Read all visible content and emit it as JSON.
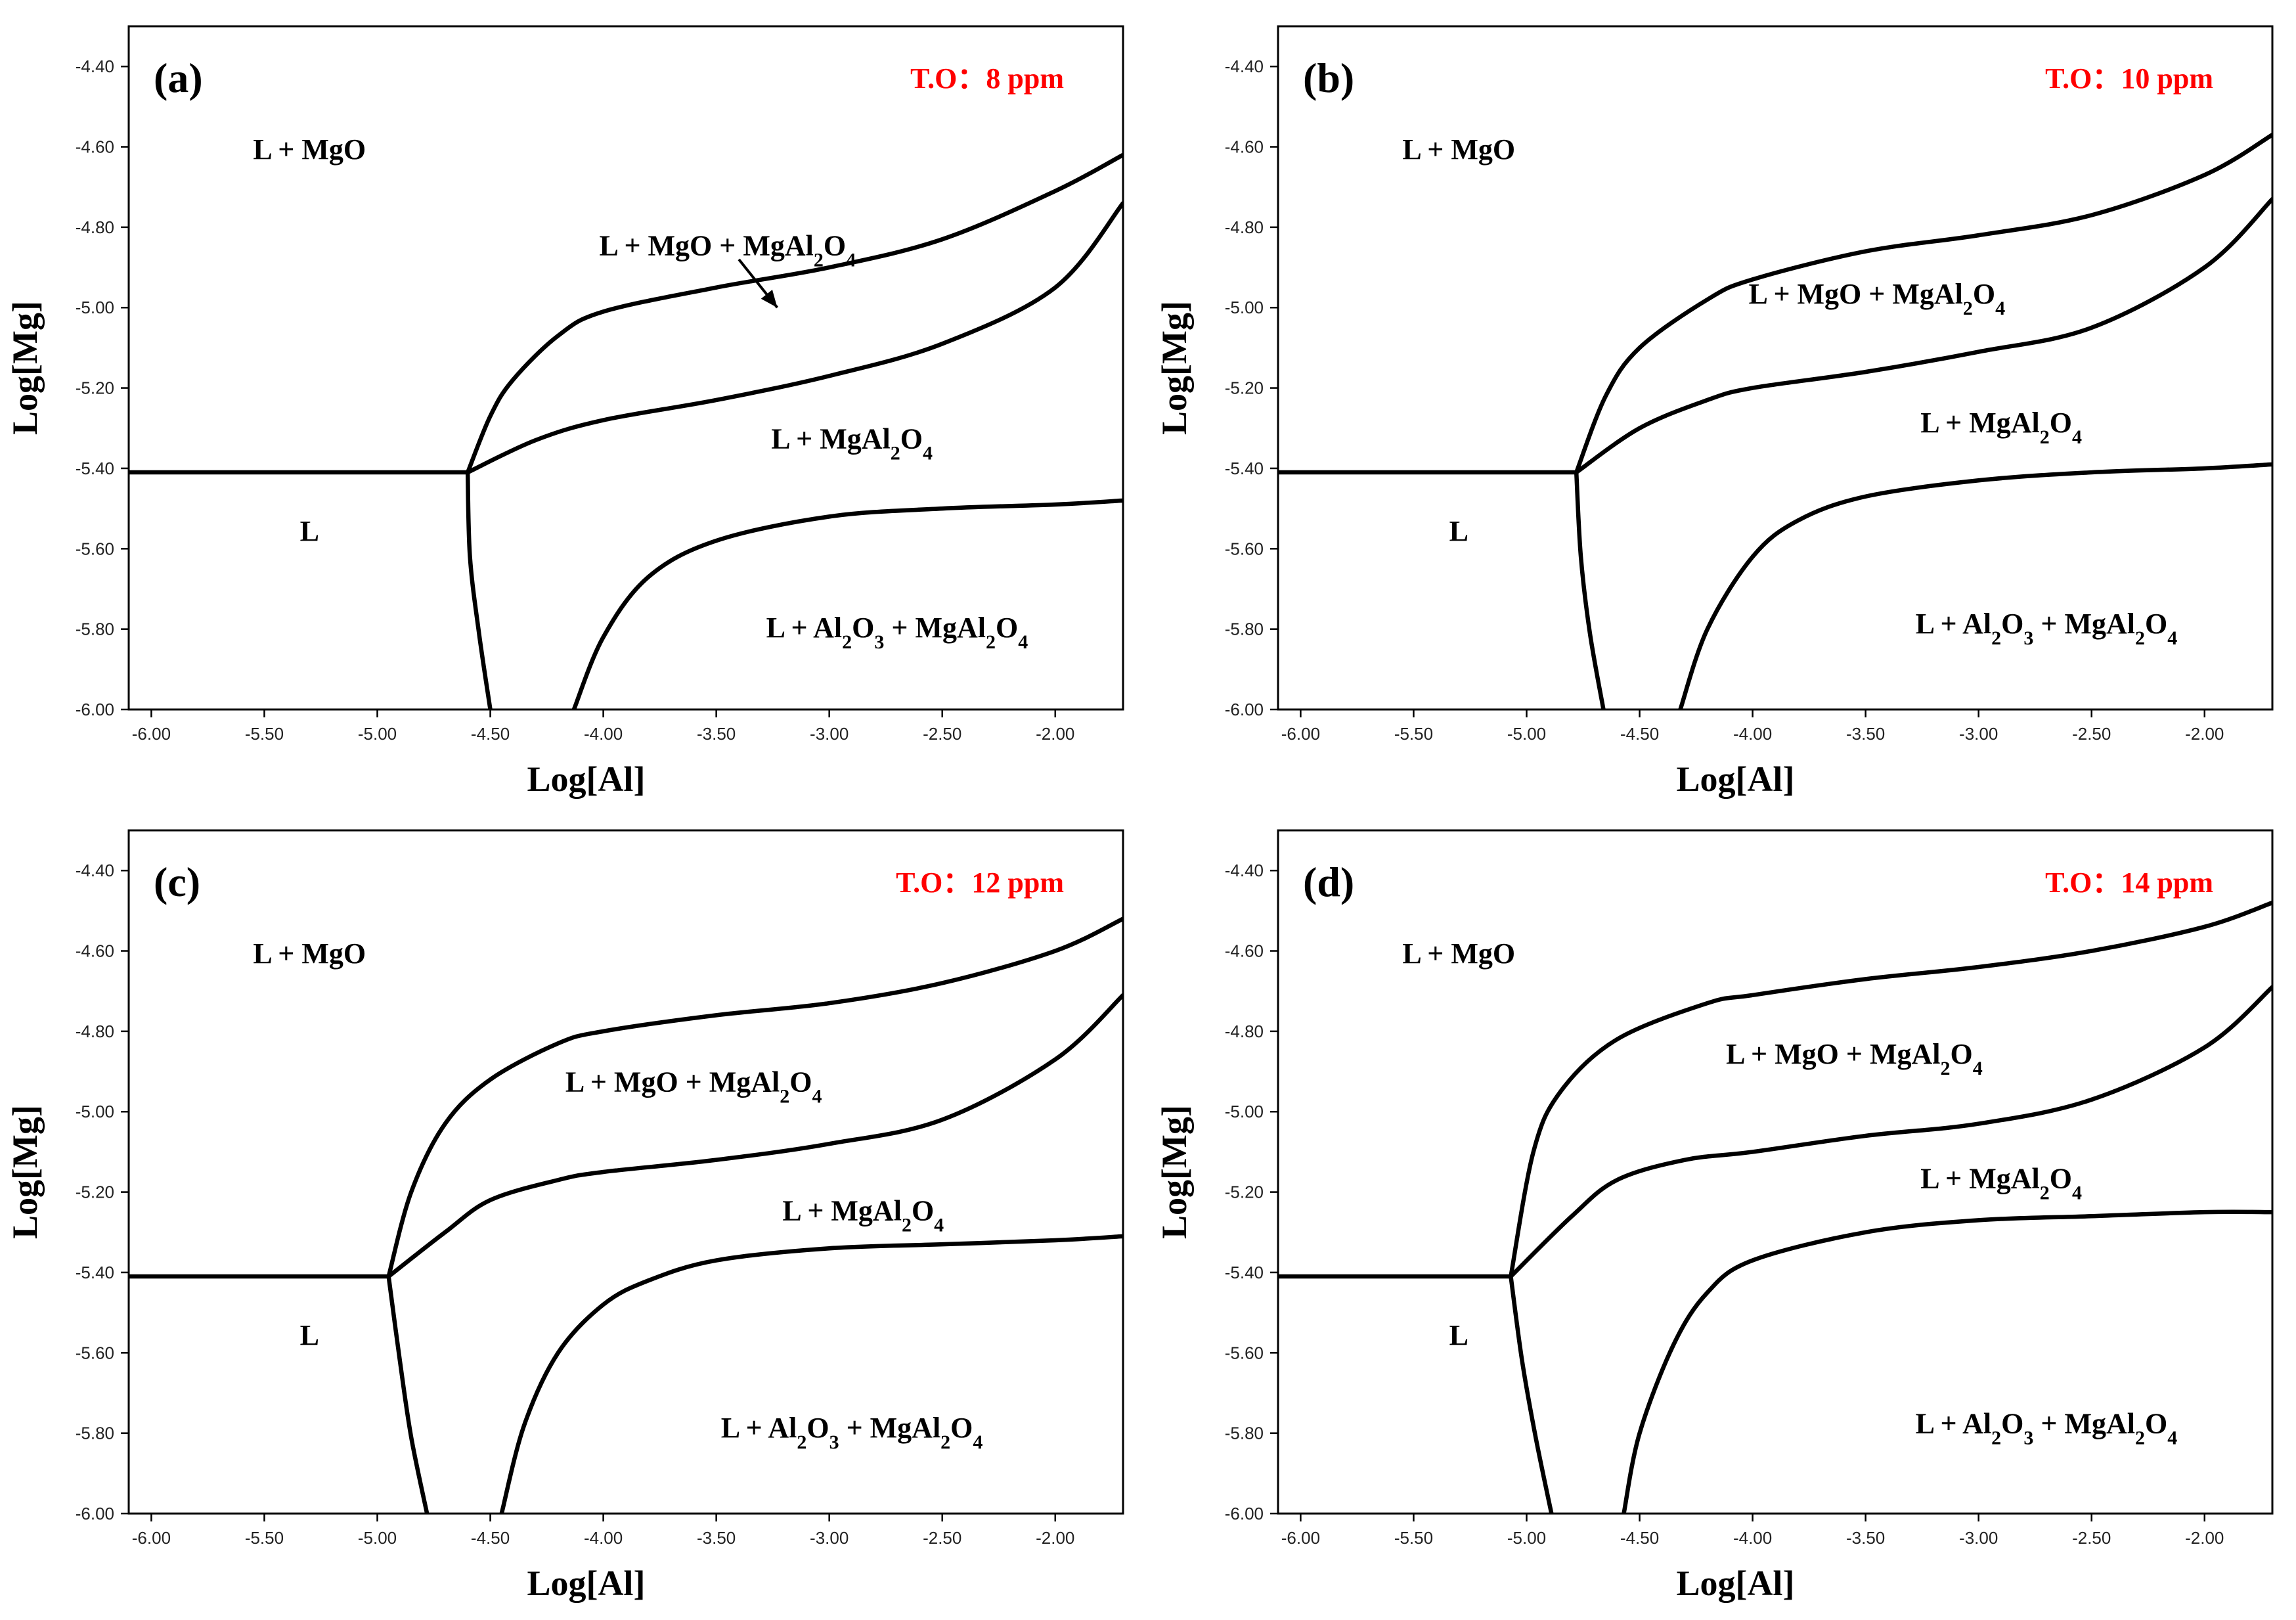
{
  "colors": {
    "total_oxygen_label": "#ff0000",
    "lines": "#000000"
  },
  "chart_data": [
    {
      "type": "line",
      "panel_label": "(a)",
      "title": "T.O：8 ppm",
      "xlabel": "Log[Al]",
      "ylabel": "Log[Mg]",
      "xlim": [
        -6.1,
        -1.7
      ],
      "ylim": [
        -6.0,
        -4.3
      ],
      "xticks": [
        "-6.00",
        "-5.50",
        "-5.00",
        "-4.50",
        "-4.00",
        "-3.50",
        "-3.00",
        "-2.50",
        "-2.00"
      ],
      "yticks": [
        "-4.40",
        "-4.60",
        "-4.80",
        "-5.00",
        "-5.20",
        "-5.40",
        "-5.60",
        "-5.80",
        "-6.00"
      ],
      "series": [
        {
          "name": "L / MgO boundary",
          "points": [
            [
              -6.1,
              -5.41
            ],
            [
              -4.6,
              -5.41
            ]
          ]
        },
        {
          "name": "MgO / MgO+MgAl2O4 boundary",
          "points": [
            [
              -4.6,
              -5.41
            ],
            [
              -4.5,
              -5.27
            ],
            [
              -4.4,
              -5.18
            ],
            [
              -4.2,
              -5.07
            ],
            [
              -4.0,
              -5.01
            ],
            [
              -3.5,
              -4.95
            ],
            [
              -3.0,
              -4.9
            ],
            [
              -2.5,
              -4.83
            ],
            [
              -2.0,
              -4.71
            ],
            [
              -1.7,
              -4.62
            ]
          ]
        },
        {
          "name": "MgO+MgAl2O4 / MgAl2O4 boundary",
          "points": [
            [
              -4.6,
              -5.41
            ],
            [
              -4.3,
              -5.33
            ],
            [
              -4.0,
              -5.28
            ],
            [
              -3.5,
              -5.23
            ],
            [
              -3.0,
              -5.17
            ],
            [
              -2.5,
              -5.09
            ],
            [
              -2.0,
              -4.95
            ],
            [
              -1.7,
              -4.74
            ]
          ]
        },
        {
          "name": "L / MgAl2O4 boundary",
          "points": [
            [
              -4.6,
              -5.41
            ],
            [
              -4.59,
              -5.62
            ],
            [
              -4.55,
              -5.81
            ],
            [
              -4.5,
              -6.0
            ]
          ]
        },
        {
          "name": "MgAl2O4 / Al2O3+MgAl2O4 boundary",
          "points": [
            [
              -4.13,
              -6.0
            ],
            [
              -4.0,
              -5.82
            ],
            [
              -3.8,
              -5.67
            ],
            [
              -3.5,
              -5.58
            ],
            [
              -3.0,
              -5.52
            ],
            [
              -2.5,
              -5.5
            ],
            [
              -2.0,
              -5.49
            ],
            [
              -1.7,
              -5.48
            ]
          ]
        }
      ],
      "annotations": [
        {
          "text": "L + MgO",
          "x": -5.3,
          "y": -4.63
        },
        {
          "text": "L + MgO + MgAl₂O₄",
          "x": -3.45,
          "y": -4.87
        },
        {
          "text": "L + MgAl₂O₄",
          "x": -2.9,
          "y": -5.35
        },
        {
          "text": "L",
          "x": -5.3,
          "y": -5.58
        },
        {
          "text": "L + Al₂O₃ + MgAl₂O₄",
          "x": -2.7,
          "y": -5.82
        }
      ],
      "arrow": {
        "from": [
          -3.4,
          -4.88
        ],
        "to": [
          -3.23,
          -5.0
        ]
      }
    },
    {
      "type": "line",
      "panel_label": "(b)",
      "title": "T.O：10 ppm",
      "xlabel": "Log[Al]",
      "ylabel": "Log[Mg]",
      "xlim": [
        -6.1,
        -1.7
      ],
      "ylim": [
        -6.0,
        -4.3
      ],
      "xticks": [
        "-6.00",
        "-5.50",
        "-5.00",
        "-4.50",
        "-4.00",
        "-3.50",
        "-3.00",
        "-2.50",
        "-2.00"
      ],
      "yticks": [
        "-4.40",
        "-4.60",
        "-4.80",
        "-5.00",
        "-5.20",
        "-5.40",
        "-5.60",
        "-5.80",
        "-6.00"
      ],
      "series": [
        {
          "name": "L / MgO boundary",
          "points": [
            [
              -6.1,
              -5.41
            ],
            [
              -4.78,
              -5.41
            ]
          ]
        },
        {
          "name": "MgO / MgO+MgAl2O4 boundary",
          "points": [
            [
              -4.78,
              -5.41
            ],
            [
              -4.65,
              -5.22
            ],
            [
              -4.5,
              -5.1
            ],
            [
              -4.2,
              -4.98
            ],
            [
              -4.0,
              -4.93
            ],
            [
              -3.5,
              -4.86
            ],
            [
              -3.0,
              -4.82
            ],
            [
              -2.5,
              -4.77
            ],
            [
              -2.0,
              -4.67
            ],
            [
              -1.7,
              -4.57
            ]
          ]
        },
        {
          "name": "MgO+MgAl2O4 / MgAl2O4 boundary",
          "points": [
            [
              -4.78,
              -5.41
            ],
            [
              -4.5,
              -5.3
            ],
            [
              -4.2,
              -5.23
            ],
            [
              -4.0,
              -5.2
            ],
            [
              -3.5,
              -5.16
            ],
            [
              -3.0,
              -5.11
            ],
            [
              -2.5,
              -5.05
            ],
            [
              -2.0,
              -4.9
            ],
            [
              -1.7,
              -4.73
            ]
          ]
        },
        {
          "name": "L / MgAl2O4 boundary",
          "points": [
            [
              -4.78,
              -5.41
            ],
            [
              -4.76,
              -5.62
            ],
            [
              -4.72,
              -5.81
            ],
            [
              -4.66,
              -6.0
            ]
          ]
        },
        {
          "name": "MgAl2O4 / Al2O3+MgAl2O4 boundary",
          "points": [
            [
              -4.32,
              -6.0
            ],
            [
              -4.2,
              -5.8
            ],
            [
              -4.0,
              -5.62
            ],
            [
              -3.8,
              -5.53
            ],
            [
              -3.5,
              -5.47
            ],
            [
              -3.0,
              -5.43
            ],
            [
              -2.5,
              -5.41
            ],
            [
              -2.0,
              -5.4
            ],
            [
              -1.7,
              -5.39
            ]
          ]
        }
      ],
      "annotations": [
        {
          "text": "L + MgO",
          "x": -5.3,
          "y": -4.63
        },
        {
          "text": "L + MgO + MgAl₂O₄",
          "x": -3.45,
          "y": -4.99
        },
        {
          "text": "L + MgAl₂O₄",
          "x": -2.9,
          "y": -5.31
        },
        {
          "text": "L",
          "x": -5.3,
          "y": -5.58
        },
        {
          "text": "L + Al₂O₃ + MgAl₂O₄",
          "x": -2.7,
          "y": -5.81
        }
      ]
    },
    {
      "type": "line",
      "panel_label": "(c)",
      "title": "T.O：12 ppm",
      "xlabel": "Log[Al]",
      "ylabel": "Log[Mg]",
      "xlim": [
        -6.1,
        -1.7
      ],
      "ylim": [
        -6.0,
        -4.3
      ],
      "xticks": [
        "-6.00",
        "-5.50",
        "-5.00",
        "-4.50",
        "-4.00",
        "-3.50",
        "-3.00",
        "-2.50",
        "-2.00"
      ],
      "yticks": [
        "-4.40",
        "-4.60",
        "-4.80",
        "-5.00",
        "-5.20",
        "-5.40",
        "-5.60",
        "-5.80",
        "-6.00"
      ],
      "series": [
        {
          "name": "L / MgO boundary",
          "points": [
            [
              -6.1,
              -5.41
            ],
            [
              -4.95,
              -5.41
            ]
          ]
        },
        {
          "name": "MgO / MgO+MgAl2O4 boundary",
          "points": [
            [
              -4.95,
              -5.41
            ],
            [
              -4.85,
              -5.2
            ],
            [
              -4.7,
              -5.03
            ],
            [
              -4.5,
              -4.92
            ],
            [
              -4.2,
              -4.83
            ],
            [
              -4.0,
              -4.8
            ],
            [
              -3.5,
              -4.76
            ],
            [
              -3.0,
              -4.73
            ],
            [
              -2.5,
              -4.68
            ],
            [
              -2.0,
              -4.6
            ],
            [
              -1.7,
              -4.52
            ]
          ]
        },
        {
          "name": "MgO+MgAl2O4 / MgAl2O4 boundary",
          "points": [
            [
              -4.95,
              -5.41
            ],
            [
              -4.7,
              -5.3
            ],
            [
              -4.5,
              -5.22
            ],
            [
              -4.2,
              -5.17
            ],
            [
              -4.0,
              -5.15
            ],
            [
              -3.5,
              -5.12
            ],
            [
              -3.0,
              -5.08
            ],
            [
              -2.5,
              -5.02
            ],
            [
              -2.0,
              -4.87
            ],
            [
              -1.7,
              -4.71
            ]
          ]
        },
        {
          "name": "L / MgAl2O4 boundary",
          "points": [
            [
              -4.95,
              -5.41
            ],
            [
              -4.9,
              -5.62
            ],
            [
              -4.85,
              -5.81
            ],
            [
              -4.78,
              -6.0
            ]
          ]
        },
        {
          "name": "MgAl2O4 / Al2O3+MgAl2O4 boundary",
          "points": [
            [
              -4.45,
              -6.0
            ],
            [
              -4.35,
              -5.78
            ],
            [
              -4.2,
              -5.6
            ],
            [
              -4.0,
              -5.48
            ],
            [
              -3.8,
              -5.42
            ],
            [
              -3.5,
              -5.37
            ],
            [
              -3.0,
              -5.34
            ],
            [
              -2.5,
              -5.33
            ],
            [
              -2.0,
              -5.32
            ],
            [
              -1.7,
              -5.31
            ]
          ]
        }
      ],
      "annotations": [
        {
          "text": "L + MgO",
          "x": -5.3,
          "y": -4.63
        },
        {
          "text": "L + MgO + MgAl₂O₄",
          "x": -3.6,
          "y": -4.95
        },
        {
          "text": "L + MgAl₂O₄",
          "x": -2.85,
          "y": -5.27
        },
        {
          "text": "L",
          "x": -5.3,
          "y": -5.58
        },
        {
          "text": "L + Al₂O₃ + MgAl₂O₄",
          "x": -2.9,
          "y": -5.81
        }
      ]
    },
    {
      "type": "line",
      "panel_label": "(d)",
      "title": "T.O：14 ppm",
      "xlabel": "Log[Al]",
      "ylabel": "Log[Mg]",
      "xlim": [
        -6.1,
        -1.7
      ],
      "ylim": [
        -6.0,
        -4.3
      ],
      "xticks": [
        "-6.00",
        "-5.50",
        "-5.00",
        "-4.50",
        "-4.00",
        "-3.50",
        "-3.00",
        "-2.50",
        "-2.00"
      ],
      "yticks": [
        "-4.40",
        "-4.60",
        "-4.80",
        "-5.00",
        "-5.20",
        "-5.40",
        "-5.60",
        "-5.80",
        "-6.00"
      ],
      "series": [
        {
          "name": "L / MgO boundary",
          "points": [
            [
              -6.1,
              -5.41
            ],
            [
              -5.07,
              -5.41
            ]
          ]
        },
        {
          "name": "MgO / MgO+MgAl2O4 boundary",
          "points": [
            [
              -5.07,
              -5.41
            ],
            [
              -4.97,
              -5.1
            ],
            [
              -4.85,
              -4.95
            ],
            [
              -4.6,
              -4.82
            ],
            [
              -4.2,
              -4.73
            ],
            [
              -4.0,
              -4.71
            ],
            [
              -3.5,
              -4.67
            ],
            [
              -3.0,
              -4.64
            ],
            [
              -2.5,
              -4.6
            ],
            [
              -2.0,
              -4.54
            ],
            [
              -1.7,
              -4.48
            ]
          ]
        },
        {
          "name": "MgO+MgAl2O4 / MgAl2O4 boundary",
          "points": [
            [
              -5.07,
              -5.41
            ],
            [
              -4.8,
              -5.26
            ],
            [
              -4.6,
              -5.17
            ],
            [
              -4.3,
              -5.12
            ],
            [
              -4.0,
              -5.1
            ],
            [
              -3.5,
              -5.06
            ],
            [
              -3.0,
              -5.03
            ],
            [
              -2.5,
              -4.97
            ],
            [
              -2.0,
              -4.84
            ],
            [
              -1.7,
              -4.69
            ]
          ]
        },
        {
          "name": "L / MgAl2O4 boundary",
          "points": [
            [
              -5.07,
              -5.41
            ],
            [
              -5.02,
              -5.62
            ],
            [
              -4.96,
              -5.81
            ],
            [
              -4.89,
              -6.0
            ]
          ]
        },
        {
          "name": "MgAl2O4 / Al2O3+MgAl2O4 boundary",
          "points": [
            [
              -4.57,
              -6.0
            ],
            [
              -4.5,
              -5.8
            ],
            [
              -4.35,
              -5.58
            ],
            [
              -4.2,
              -5.45
            ],
            [
              -4.0,
              -5.37
            ],
            [
              -3.5,
              -5.3
            ],
            [
              -3.0,
              -5.27
            ],
            [
              -2.5,
              -5.26
            ],
            [
              -2.0,
              -5.25
            ],
            [
              -1.7,
              -5.25
            ]
          ]
        }
      ],
      "annotations": [
        {
          "text": "L + MgO",
          "x": -5.3,
          "y": -4.63
        },
        {
          "text": "L + MgO + MgAl₂O₄",
          "x": -3.55,
          "y": -4.88
        },
        {
          "text": "L + MgAl₂O₄",
          "x": -2.9,
          "y": -5.19
        },
        {
          "text": "L",
          "x": -5.3,
          "y": -5.58
        },
        {
          "text": "L + Al₂O₃ + MgAl₂O₄",
          "x": -2.7,
          "y": -5.8
        }
      ]
    }
  ]
}
